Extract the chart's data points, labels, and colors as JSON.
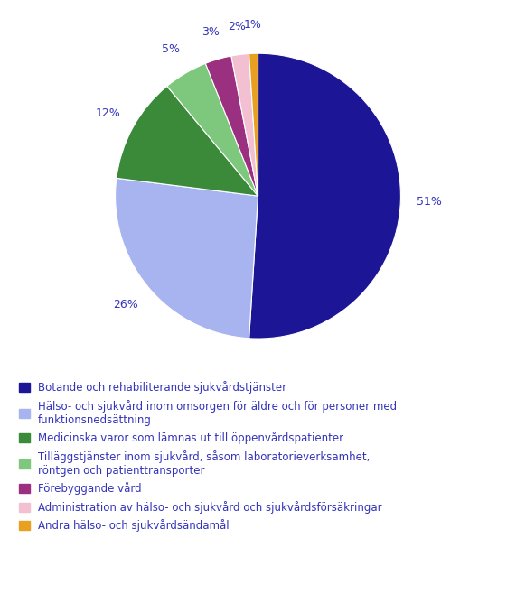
{
  "slices": [
    51,
    26,
    12,
    5,
    3,
    2,
    1
  ],
  "colors": [
    "#1c1696",
    "#a8b4f0",
    "#3a8a3a",
    "#7dc87d",
    "#9b3080",
    "#f2c0d0",
    "#e8a020"
  ],
  "labels": [
    "51%",
    "26%",
    "12%",
    "5%",
    "3%",
    "2%",
    "1%"
  ],
  "legend_labels": [
    "Botande och rehabiliterande sjukvårdstjänster",
    "Hälso- och sjukvård inom omsorgen för äldre och för personer med\nfunktionsnedsättning",
    "Medicinska varor som lämnas ut till öppenvårdspatienter",
    "Tilläggstjänster inom sjukvård, såsom laboratorieverksamhet,\nröntgen och patienttransporter",
    "Förebyggande vård",
    "Administration av hälso- och sjukvård och sjukvårdsförsäkringar",
    "Andra hälso- och sjukvårdsändamål"
  ],
  "label_color": "#3333bb",
  "background_color": "#ffffff",
  "startangle": 90,
  "figsize": [
    5.71,
    6.58
  ],
  "dpi": 100
}
